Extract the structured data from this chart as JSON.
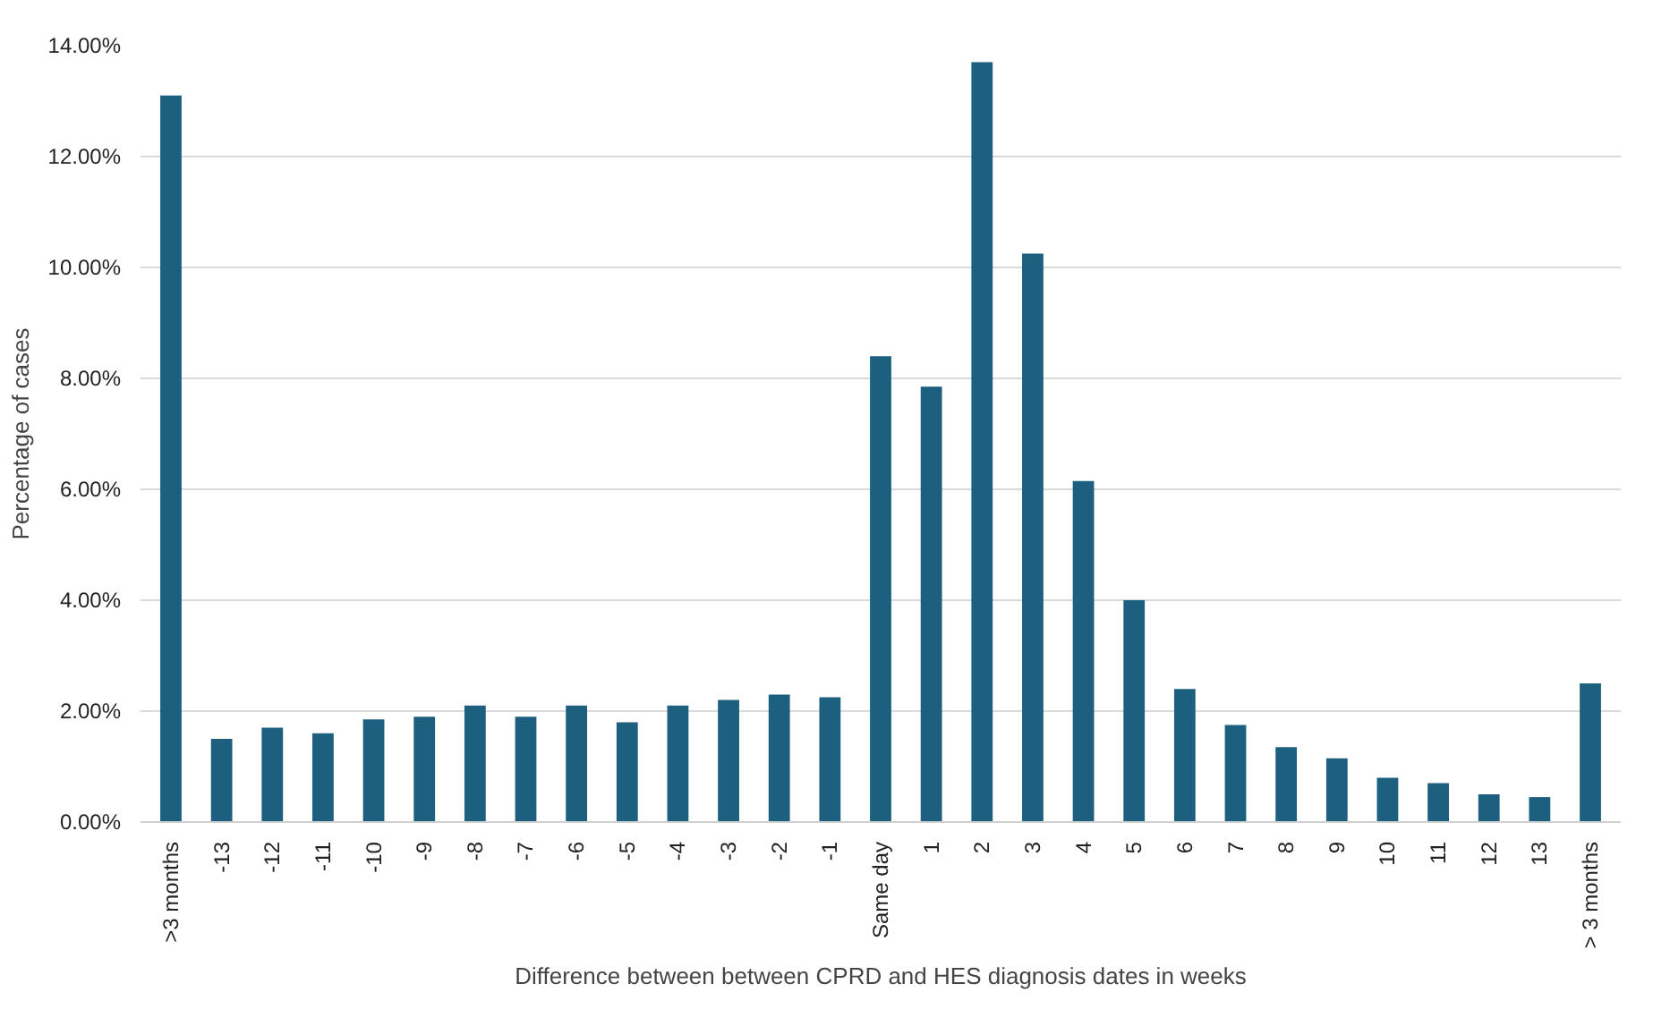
{
  "chart_data": {
    "type": "bar",
    "xlabel": "Difference between between CPRD and HES diagnosis dates in weeks",
    "ylabel": "Percentage of cases",
    "categories": [
      ">3 months",
      "-13",
      "-12",
      "-11",
      "-10",
      "-9",
      "-8",
      "-7",
      "-6",
      "-5",
      "-4",
      "-3",
      "-2",
      "-1",
      "Same day",
      "1",
      "2",
      "3",
      "4",
      "5",
      "6",
      "7",
      "8",
      "9",
      "10",
      "11",
      "12",
      "13",
      "> 3 months"
    ],
    "values": [
      13.1,
      1.5,
      1.7,
      1.6,
      1.85,
      1.9,
      2.1,
      1.9,
      2.1,
      1.8,
      2.1,
      2.2,
      2.3,
      2.25,
      8.4,
      7.85,
      13.7,
      10.25,
      6.15,
      4.0,
      2.4,
      1.75,
      1.35,
      1.15,
      0.8,
      0.7,
      0.5,
      0.45,
      2.5
    ],
    "color": "#1c5f7e",
    "ylim": [
      0,
      14
    ],
    "yticks": [
      {
        "value": 0,
        "label": "0.00%"
      },
      {
        "value": 2,
        "label": "2.00%"
      },
      {
        "value": 4,
        "label": "4.00%"
      },
      {
        "value": 6,
        "label": "6.00%"
      },
      {
        "value": 8,
        "label": "8.00%"
      },
      {
        "value": 10,
        "label": "10.00%"
      },
      {
        "value": 12,
        "label": "12.00%"
      },
      {
        "value": 14,
        "label": "14.00%"
      }
    ],
    "grid": "y"
  }
}
